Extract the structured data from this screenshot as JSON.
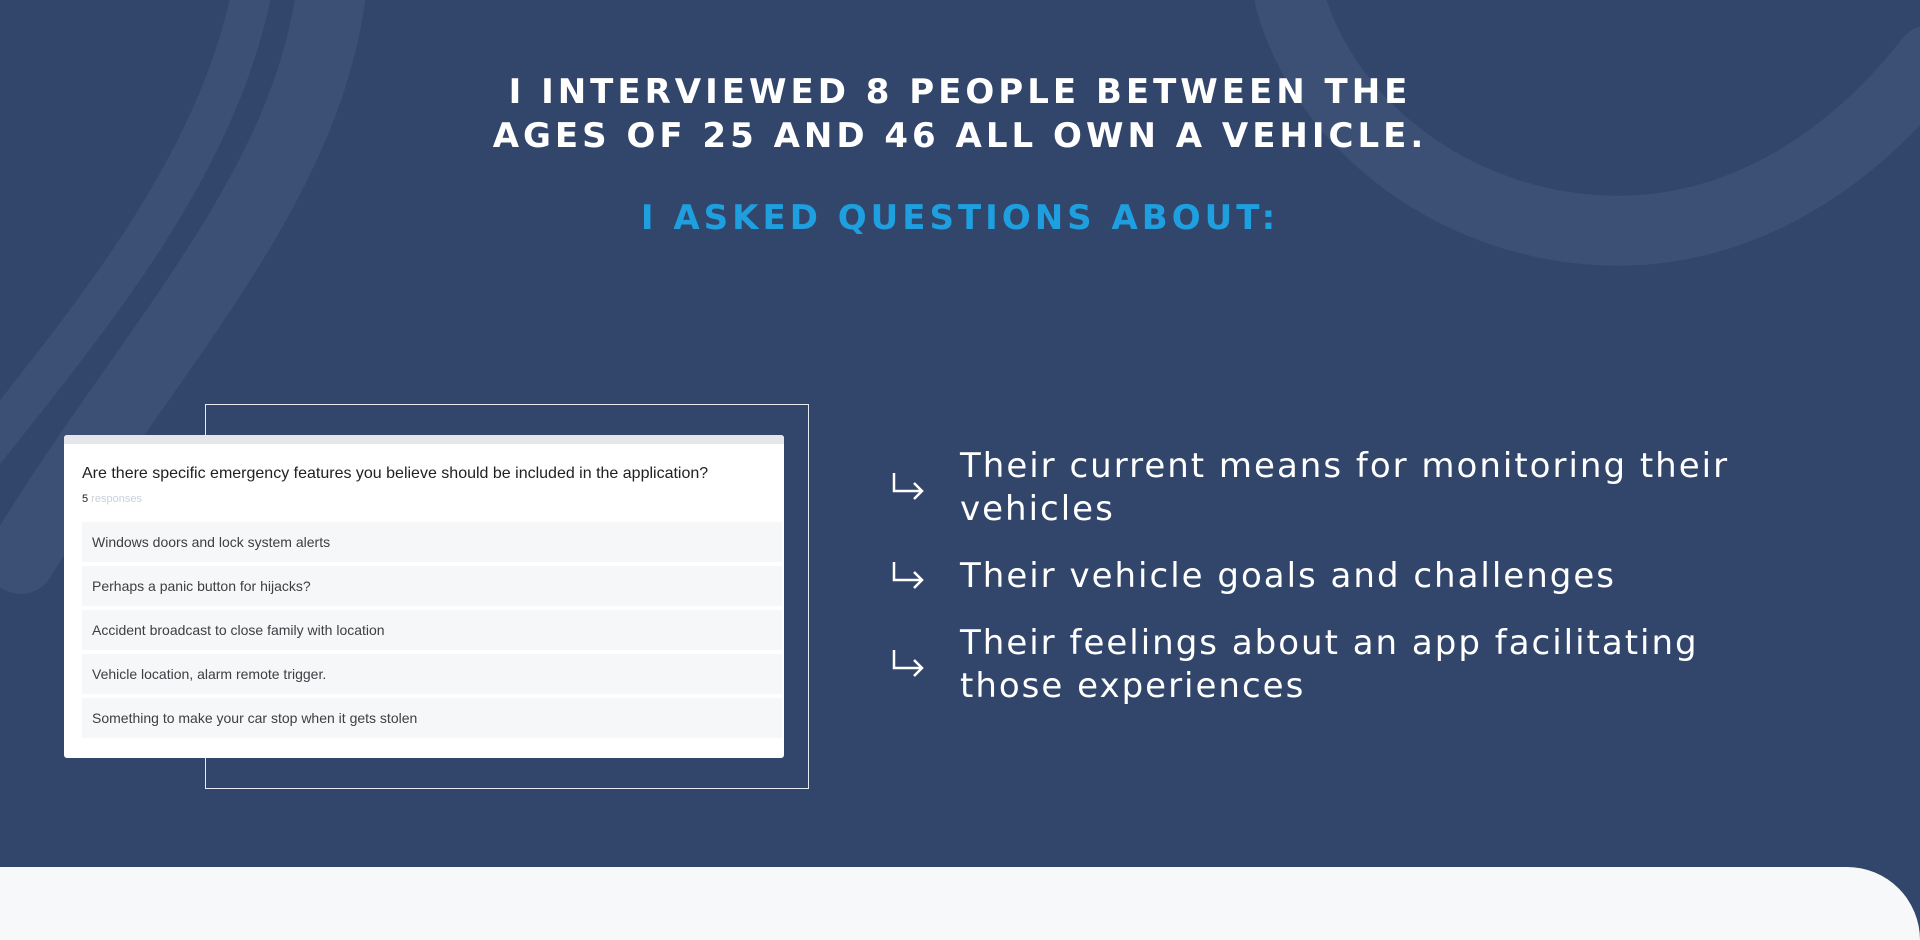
{
  "page": {
    "background_color": "#32466b",
    "accent_color": "#1ea0e0",
    "headline_lines": [
      "I INTERVIEWED 8 PEOPLE BETWEEN THE",
      "AGES OF 25 AND 46 ALL OWN A VEHICLE."
    ],
    "subheadline": "I ASKED QUESTIONS ABOUT:"
  },
  "survey": {
    "question": "Are there specific emergency features you believe should be included in the application?",
    "response_count": "5",
    "response_suffix": " responses",
    "answers": [
      "Windows doors and lock system alerts",
      "Perhaps a panic button for hijacks?",
      "Accident broadcast to close family with location",
      "Vehicle location, alarm remote trigger.",
      "Something to make your car stop when it gets stolen"
    ]
  },
  "topics": {
    "icon": "return-arrow-icon",
    "items": [
      "Their current means for monitoring their vehicles",
      "Their vehicle goals and challenges",
      "Their feelings about an app facilitating those experiences"
    ]
  }
}
